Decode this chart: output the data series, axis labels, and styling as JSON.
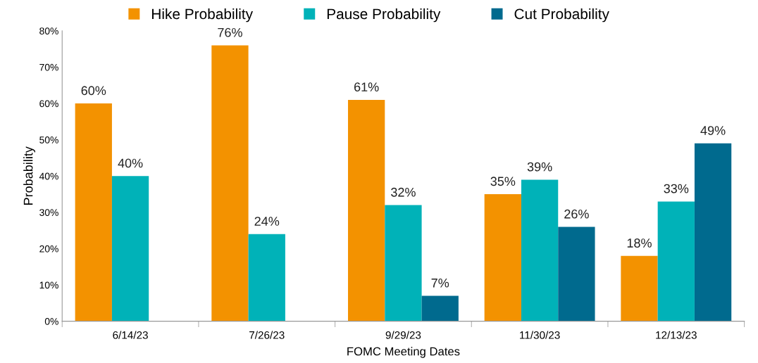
{
  "chart_data": {
    "type": "bar",
    "xlabel": "FOMC Meeting Dates",
    "ylabel": "Probability",
    "categories": [
      "6/14/23",
      "7/26/23",
      "9/29/23",
      "11/30/23",
      "12/13/23"
    ],
    "series": [
      {
        "name": "Hike Probability",
        "color": "#f39200",
        "values": [
          60,
          76,
          61,
          35,
          18
        ],
        "value_labels": [
          "60%",
          "76%",
          "61%",
          "35%",
          "18%"
        ]
      },
      {
        "name": "Pause Probability",
        "color": "#00b2b8",
        "values": [
          40,
          24,
          32,
          39,
          33
        ],
        "value_labels": [
          "40%",
          "24%",
          "32%",
          "39%",
          "33%"
        ]
      },
      {
        "name": "Cut Probability",
        "color": "#006a8e",
        "values": [
          null,
          null,
          7,
          26,
          49
        ],
        "value_labels": [
          null,
          null,
          "7%",
          "26%",
          "49%"
        ]
      }
    ],
    "ylim": [
      0,
      80
    ],
    "yticks": [
      {
        "value": 0,
        "label": "0%"
      },
      {
        "value": 10,
        "label": "10%"
      },
      {
        "value": 20,
        "label": "20%"
      },
      {
        "value": 30,
        "label": "30%"
      },
      {
        "value": 40,
        "label": "40%"
      },
      {
        "value": 50,
        "label": "50%"
      },
      {
        "value": 60,
        "label": "60%"
      },
      {
        "value": 70,
        "label": "70%"
      },
      {
        "value": 80,
        "label": "80%"
      }
    ],
    "grid": false,
    "legend": "top"
  }
}
